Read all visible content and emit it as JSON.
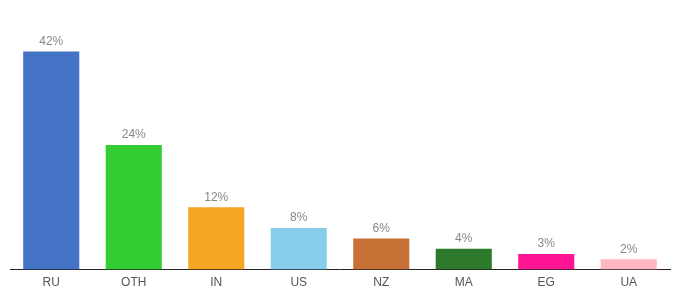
{
  "chart_data": {
    "type": "bar",
    "categories": [
      "RU",
      "OTH",
      "IN",
      "US",
      "NZ",
      "MA",
      "EG",
      "UA"
    ],
    "values": [
      42,
      24,
      12,
      8,
      6,
      4,
      3,
      2
    ],
    "value_labels": [
      "42%",
      "24%",
      "12%",
      "8%",
      "6%",
      "4%",
      "3%",
      "2%"
    ],
    "colors": [
      "#4472c4",
      "#33cc33",
      "#f5a623",
      "#87ceeb",
      "#c87137",
      "#2d7a2d",
      "#ff1493",
      "#ffb6c1"
    ],
    "ylim": [
      0,
      50
    ],
    "data_labels": true,
    "tick_labels": "x",
    "grid": false
  }
}
